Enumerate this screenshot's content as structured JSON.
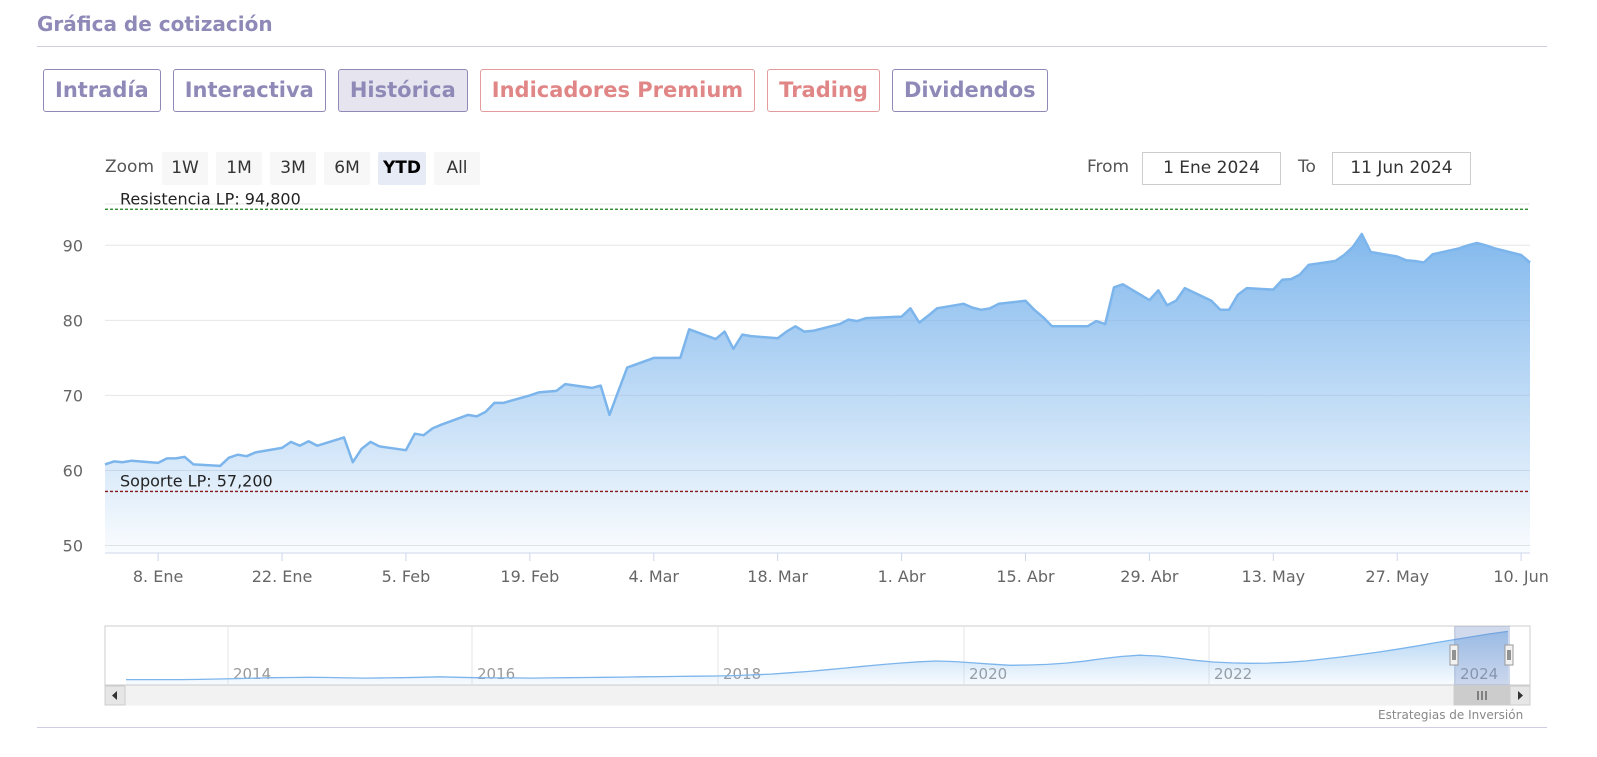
{
  "header": {
    "title": "Gráfica de cotización"
  },
  "tabs": [
    {
      "label": "Intradía",
      "active": false,
      "premium": false
    },
    {
      "label": "Interactiva",
      "active": false,
      "premium": false
    },
    {
      "label": "Histórica",
      "active": true,
      "premium": false
    },
    {
      "label": "Indicadores Premium",
      "active": false,
      "premium": true
    },
    {
      "label": "Trading",
      "active": false,
      "premium": true
    },
    {
      "label": "Dividendos",
      "active": false,
      "premium": false
    }
  ],
  "range_selector": {
    "zoom_label": "Zoom",
    "buttons": [
      "1W",
      "1M",
      "3M",
      "6M",
      "YTD",
      "All"
    ],
    "selected": "YTD",
    "from_label": "From",
    "from_value": "1 Ene 2024",
    "to_label": "To",
    "to_value": "11 Jun 2024"
  },
  "colors": {
    "accent": "#8f89b8",
    "premium": "#e18686",
    "series_line": "#7cb5ec",
    "resistance_line": "#1a7f1a",
    "support_line": "#8b1a1a"
  },
  "chart_data": {
    "type": "area",
    "title": "",
    "xlabel": "",
    "ylabel": "",
    "ylim": [
      49,
      95.5
    ],
    "xlim": [
      "2024-01-02",
      "2024-06-11"
    ],
    "grid": true,
    "legend": "none",
    "y_ticks": [
      50,
      60,
      70,
      80,
      90
    ],
    "x_ticks": [
      {
        "label": "8. Ene",
        "date": "2024-01-08"
      },
      {
        "label": "22. Ene",
        "date": "2024-01-22"
      },
      {
        "label": "5. Feb",
        "date": "2024-02-05"
      },
      {
        "label": "19. Feb",
        "date": "2024-02-19"
      },
      {
        "label": "4. Mar",
        "date": "2024-03-04"
      },
      {
        "label": "18. Mar",
        "date": "2024-03-18"
      },
      {
        "label": "1. Abr",
        "date": "2024-04-01"
      },
      {
        "label": "15. Abr",
        "date": "2024-04-15"
      },
      {
        "label": "29. Abr",
        "date": "2024-04-29"
      },
      {
        "label": "13. May",
        "date": "2024-05-13"
      },
      {
        "label": "27. May",
        "date": "2024-05-27"
      },
      {
        "label": "10. Jun",
        "date": "2024-06-10"
      }
    ],
    "plot_lines": [
      {
        "label": "Resistencia LP: 94,800",
        "value": 94.8,
        "color": "#1a7f1a"
      },
      {
        "label": "Soporte LP: 57,200",
        "value": 57.2,
        "color": "#8b1a1a"
      }
    ],
    "series": [
      {
        "x": [
          "2024-01-02",
          "2024-01-03",
          "2024-01-04",
          "2024-01-05",
          "2024-01-08",
          "2024-01-09",
          "2024-01-10",
          "2024-01-11",
          "2024-01-12",
          "2024-01-15",
          "2024-01-16",
          "2024-01-17",
          "2024-01-18",
          "2024-01-19",
          "2024-01-22",
          "2024-01-23",
          "2024-01-24",
          "2024-01-25",
          "2024-01-26",
          "2024-01-29",
          "2024-01-30",
          "2024-01-31",
          "2024-02-01",
          "2024-02-02",
          "2024-02-05",
          "2024-02-06",
          "2024-02-07",
          "2024-02-08",
          "2024-02-09",
          "2024-02-12",
          "2024-02-13",
          "2024-02-14",
          "2024-02-15",
          "2024-02-16",
          "2024-02-19",
          "2024-02-20",
          "2024-02-21",
          "2024-02-22",
          "2024-02-23",
          "2024-02-26",
          "2024-02-27",
          "2024-02-28",
          "2024-02-29",
          "2024-03-01",
          "2024-03-04",
          "2024-03-05",
          "2024-03-06",
          "2024-03-07",
          "2024-03-08",
          "2024-03-11",
          "2024-03-12",
          "2024-03-13",
          "2024-03-14",
          "2024-03-15",
          "2024-03-18",
          "2024-03-19",
          "2024-03-20",
          "2024-03-21",
          "2024-03-22",
          "2024-03-25",
          "2024-03-26",
          "2024-03-27",
          "2024-03-28",
          "2024-04-01",
          "2024-04-02",
          "2024-04-03",
          "2024-04-04",
          "2024-04-05",
          "2024-04-08",
          "2024-04-09",
          "2024-04-10",
          "2024-04-11",
          "2024-04-12",
          "2024-04-15",
          "2024-04-16",
          "2024-04-17",
          "2024-04-18",
          "2024-04-19",
          "2024-04-22",
          "2024-04-23",
          "2024-04-24",
          "2024-04-25",
          "2024-04-26",
          "2024-04-29",
          "2024-04-30",
          "2024-05-01",
          "2024-05-02",
          "2024-05-03",
          "2024-05-06",
          "2024-05-07",
          "2024-05-08",
          "2024-05-09",
          "2024-05-10",
          "2024-05-13",
          "2024-05-14",
          "2024-05-15",
          "2024-05-16",
          "2024-05-17",
          "2024-05-20",
          "2024-05-21",
          "2024-05-22",
          "2024-05-23",
          "2024-05-24",
          "2024-05-27",
          "2024-05-28",
          "2024-05-29",
          "2024-05-30",
          "2024-05-31",
          "2024-06-03",
          "2024-06-04",
          "2024-06-05",
          "2024-06-06",
          "2024-06-07",
          "2024-06-10",
          "2024-06-11"
        ],
        "values": [
          60.8,
          61.2,
          61.1,
          61.3,
          61.0,
          61.6,
          61.6,
          61.8,
          60.8,
          60.6,
          61.7,
          62.1,
          61.9,
          62.4,
          63.0,
          63.8,
          63.3,
          63.9,
          63.3,
          64.4,
          61.1,
          62.9,
          63.8,
          63.2,
          62.7,
          64.9,
          64.7,
          65.6,
          66.1,
          67.4,
          67.2,
          67.8,
          69.0,
          69.0,
          70.0,
          70.4,
          70.5,
          70.6,
          71.5,
          71.0,
          71.3,
          67.4,
          70.6,
          73.7,
          75.0,
          75.0,
          75.0,
          75.0,
          78.8,
          77.5,
          78.5,
          76.2,
          78.1,
          77.9,
          77.6,
          78.5,
          79.2,
          78.5,
          78.6,
          79.5,
          80.1,
          79.9,
          80.3,
          80.5,
          81.6,
          79.7,
          80.6,
          81.6,
          82.2,
          81.7,
          81.4,
          81.6,
          82.2,
          82.6,
          81.4,
          80.4,
          79.2,
          79.2,
          79.2,
          79.9,
          79.5,
          84.4,
          84.8,
          82.7,
          84.0,
          82.0,
          82.6,
          84.3,
          82.6,
          81.4,
          81.4,
          83.4,
          84.3,
          84.1,
          85.4,
          85.5,
          86.1,
          87.4,
          87.9,
          88.7,
          89.8,
          91.5,
          89.1,
          88.5,
          88.0,
          87.9,
          87.7,
          88.8,
          89.6,
          90.0,
          90.3,
          90.0,
          89.6,
          88.7,
          87.7
        ]
      }
    ]
  },
  "navigator": {
    "year_labels": [
      "2014",
      "2016",
      "2018",
      "2020",
      "2022",
      "2024"
    ],
    "values": [
      45,
      45,
      45,
      45,
      45.2,
      45.6,
      46,
      46.4,
      46.8,
      47,
      47.2,
      47,
      46.6,
      46.4,
      46.6,
      46.8,
      47.2,
      47.6,
      47.2,
      46.8,
      46.6,
      46.6,
      46.4,
      46.6,
      46.8,
      47,
      47.2,
      47.4,
      47.6,
      47.8,
      48,
      48.2,
      48.4,
      48.8,
      49.4,
      50.2,
      51.4,
      52.6,
      54.2,
      55.8,
      57.4,
      59,
      60.4,
      61.6,
      62.4,
      61.8,
      60.6,
      59.4,
      58.4,
      58.6,
      59.2,
      60.4,
      62.2,
      64.6,
      66.6,
      67.8,
      67,
      65.2,
      63,
      61.4,
      60.6,
      60.2,
      60.4,
      61.2,
      62.4,
      64.2,
      66.2,
      68.4,
      70.8,
      73.4,
      76.2,
      79.2,
      82,
      84.8,
      87.6,
      90
    ]
  },
  "credits": "Estrategias de Inversión"
}
